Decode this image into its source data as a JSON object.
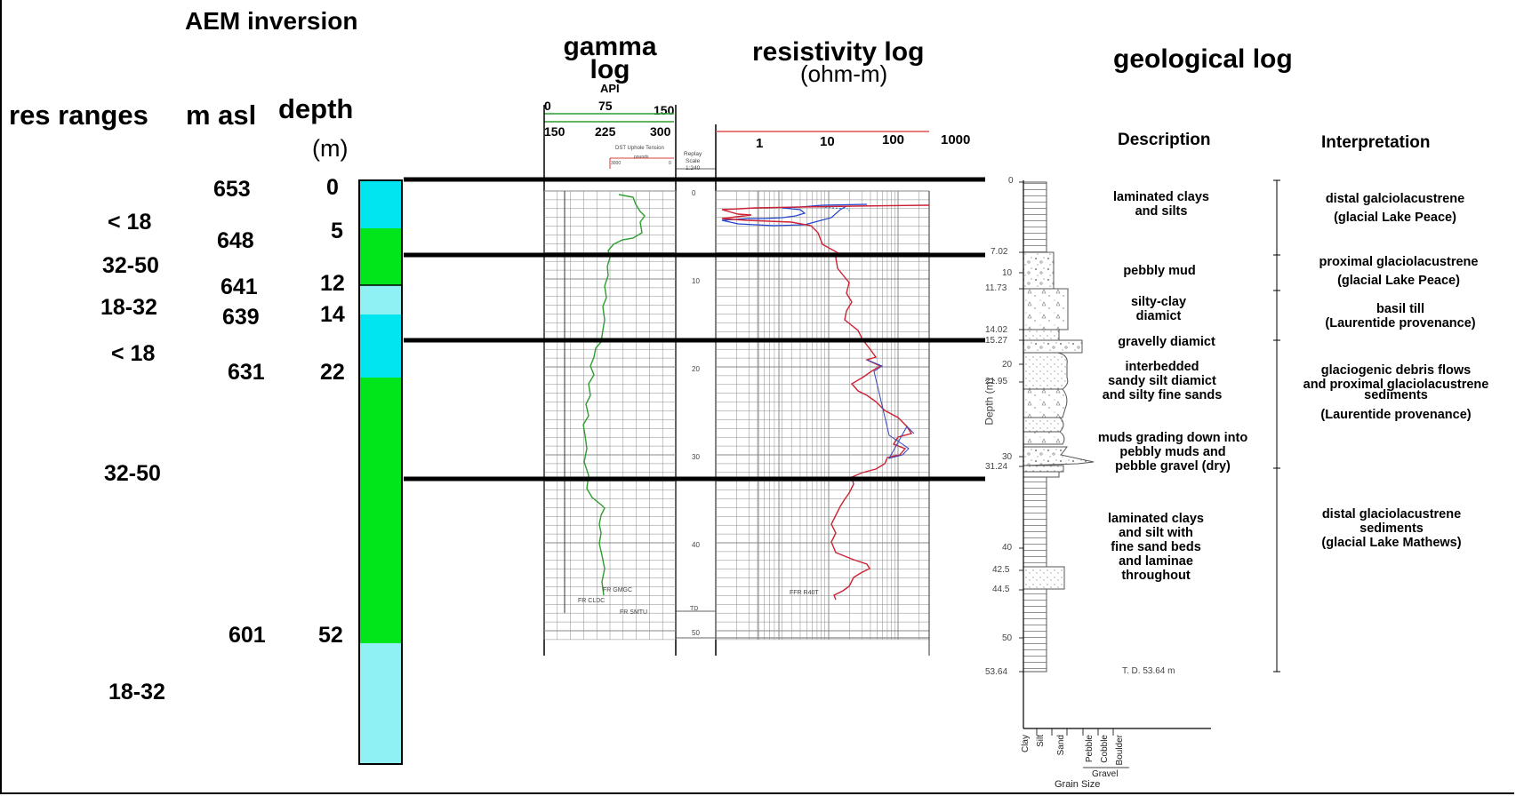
{
  "aem": {
    "title": "AEM inversion",
    "res_ranges_label": "res ranges",
    "m_asl_label": "m asl",
    "depth_label": "depth",
    "depth_unit": "(m)",
    "res_ranges": [
      "< 18",
      "32-50",
      "18-32",
      "< 18",
      "32-50",
      "18-32"
    ],
    "m_asl": [
      "653",
      "648",
      "641",
      "639",
      "631",
      "601"
    ],
    "depths": [
      "0",
      "5",
      "12",
      "14",
      "22",
      "52"
    ],
    "colors": {
      "cyan": "#00e5ef",
      "green": "#00e61a",
      "light_cyan": "#90f1f5"
    }
  },
  "gamma": {
    "title_line1": "gamma",
    "title_line2": "log",
    "unit": "API",
    "scale1": [
      "0",
      "75",
      "150"
    ],
    "scale2": [
      "150",
      "225",
      "300"
    ],
    "tension_label": "DST Uphole Tension",
    "tension_unit": "pounds",
    "tension_ticks": [
      "3000",
      "0"
    ],
    "color": "#2e9e2e"
  },
  "replay": {
    "label_line1": "Replay",
    "label_line2": "Scale",
    "label_line3": "1:240",
    "ticks": [
      "0",
      "10",
      "20",
      "30",
      "40",
      "50"
    ],
    "td_label": "TD",
    "flags": [
      "FR GMGC",
      "FR CLDC",
      "FR SMTU",
      "FFR R40T"
    ]
  },
  "resistivity": {
    "title": "resistivity log",
    "unit": "(ohm-m)",
    "ticks": [
      "1",
      "10",
      "100",
      "1000"
    ],
    "color": "#cc2233"
  },
  "geo": {
    "title": "geological log",
    "description_header": "Description",
    "interpretation_header": "Interpretation",
    "depth_axis_label": "Depth (m)",
    "depth_ticks": [
      "0",
      "7.02",
      "10",
      "11.73",
      "14.02",
      "15.27",
      "20",
      "21.95",
      "30",
      "31.24",
      "40",
      "42.5",
      "44.5",
      "50",
      "53.64"
    ],
    "td_note": "T. D. 53.64 m",
    "grain_sizes": [
      "Clay",
      "Silt",
      "Sand",
      "Pebble",
      "Cobble",
      "Boulder"
    ],
    "gravel_label": "Gravel",
    "grain_size_label": "Grain Size",
    "descriptions": [
      [
        "laminated clays",
        "and silts"
      ],
      [
        "pebbly mud"
      ],
      [
        "silty-clay",
        "diamict"
      ],
      [
        "gravelly diamict"
      ],
      [
        "interbedded",
        "sandy silt diamict",
        "and silty fine sands"
      ],
      [
        "muds grading down into",
        "pebbly muds and",
        "pebble gravel (dry)"
      ],
      [
        "laminated clays",
        "and silt with",
        "fine sand beds",
        "and laminae",
        "throughout"
      ]
    ],
    "interpretations": [
      [
        "distal galciolacustrene",
        "(glacial Lake Peace)"
      ],
      [
        "proximal glaciolacustrene",
        "(glacial Lake Peace)"
      ],
      [
        "basil till",
        "(Laurentide provenance)"
      ],
      [
        "glaciogenic debris flows",
        "and proximal glaciolacustrene",
        "sediments",
        "(Laurentide provenance)"
      ],
      [
        "distal glaciolacustrene",
        "sediments",
        "(glacial Lake Mathews)"
      ]
    ]
  }
}
